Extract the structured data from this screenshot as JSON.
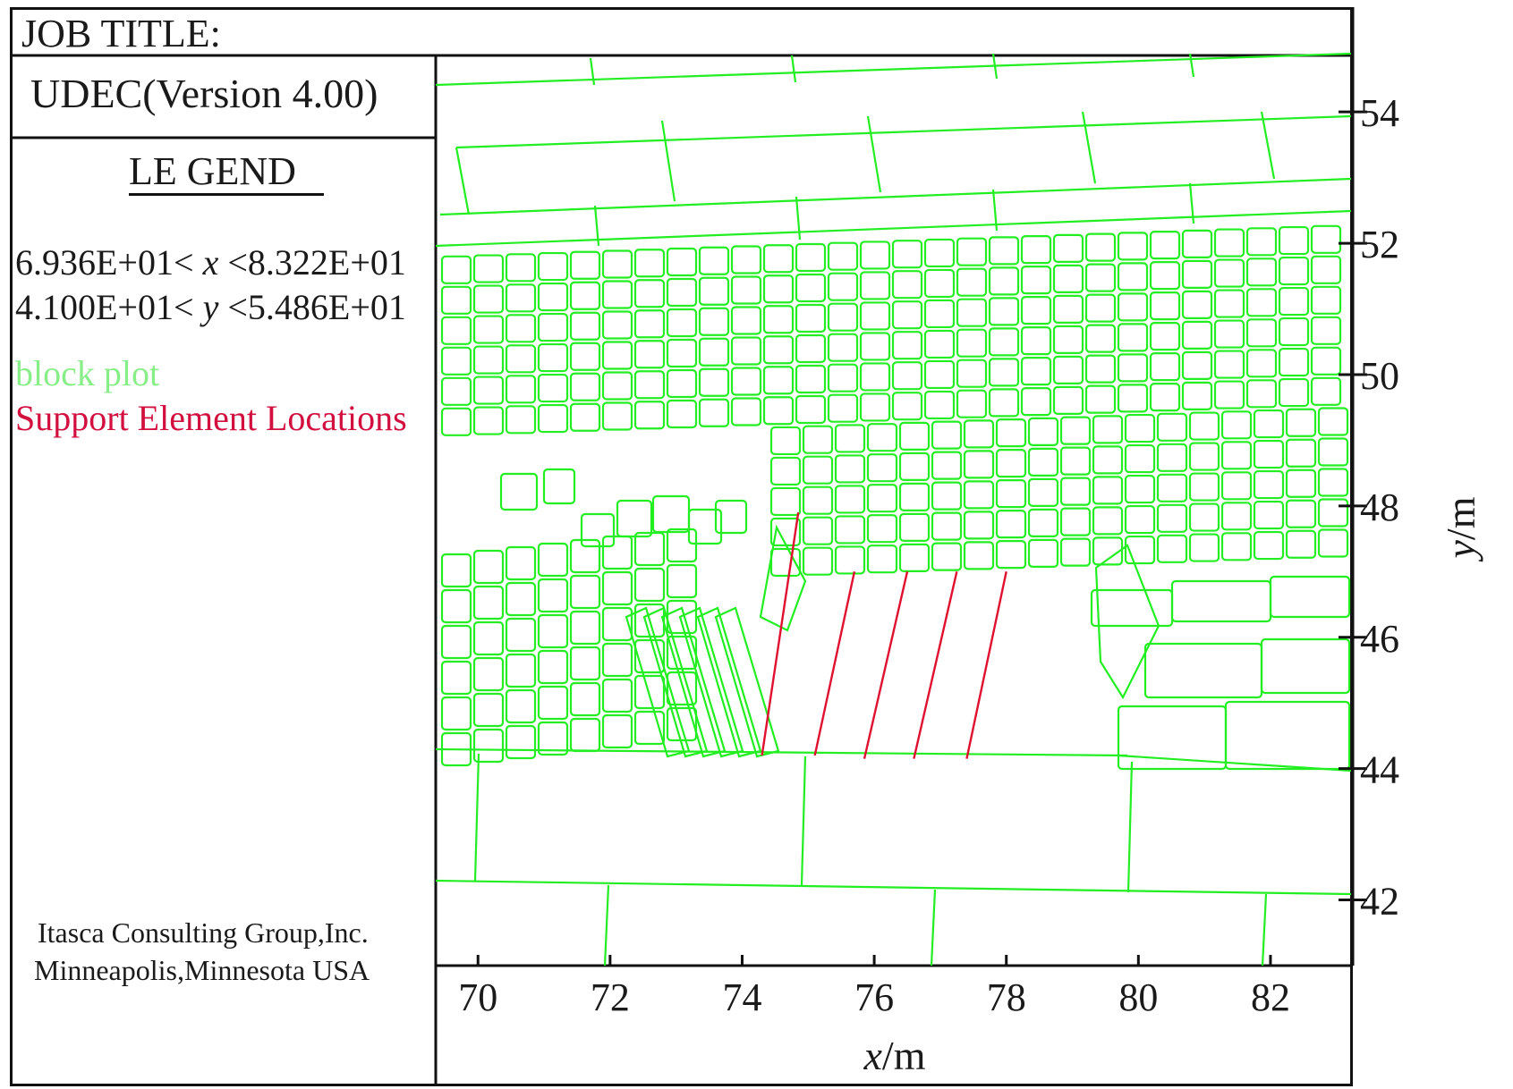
{
  "header": {
    "job_title": "JOB TITLE:"
  },
  "panel": {
    "version": "UDEC(Version 4.00)",
    "legend_title": "LE GEND",
    "x_range": {
      "min": "6.936E+01",
      "var": "x",
      "max": "8.322E+01"
    },
    "y_range": {
      "min": "4.100E+01",
      "var": "y",
      "max": "5.486E+01"
    },
    "legend_block": "block plot",
    "legend_support": "Support Element Locations",
    "credit_line1": "Itasca Consulting Group,Inc.",
    "credit_line2": "Minneapolis,Minnesota USA"
  },
  "colors": {
    "block": "#22ee22",
    "support": "#e01030",
    "legend_block": "#88ee88",
    "legend_support": "#d21040",
    "frame": "#111111"
  },
  "plot": {
    "x_label": {
      "var": "x",
      "unit": "/m"
    },
    "y_label": {
      "var": "y",
      "unit": "/m"
    },
    "x_ticks": [
      70,
      72,
      74,
      76,
      78,
      80,
      82
    ],
    "y_ticks": [
      54,
      52,
      50,
      48,
      46,
      44,
      42
    ],
    "x_range": [
      69.36,
      83.22
    ],
    "y_range": [
      41.0,
      54.86
    ],
    "support_elements": [
      {
        "x1": 74.85,
        "y1": 47.9,
        "x2": 74.3,
        "y2": 44.2
      },
      {
        "x1": 75.7,
        "y1": 47.0,
        "x2": 75.1,
        "y2": 44.2
      },
      {
        "x1": 76.5,
        "y1": 47.0,
        "x2": 75.85,
        "y2": 44.15
      },
      {
        "x1": 77.25,
        "y1": 47.0,
        "x2": 76.6,
        "y2": 44.15
      },
      {
        "x1": 78.0,
        "y1": 47.0,
        "x2": 77.4,
        "y2": 44.15
      }
    ]
  }
}
